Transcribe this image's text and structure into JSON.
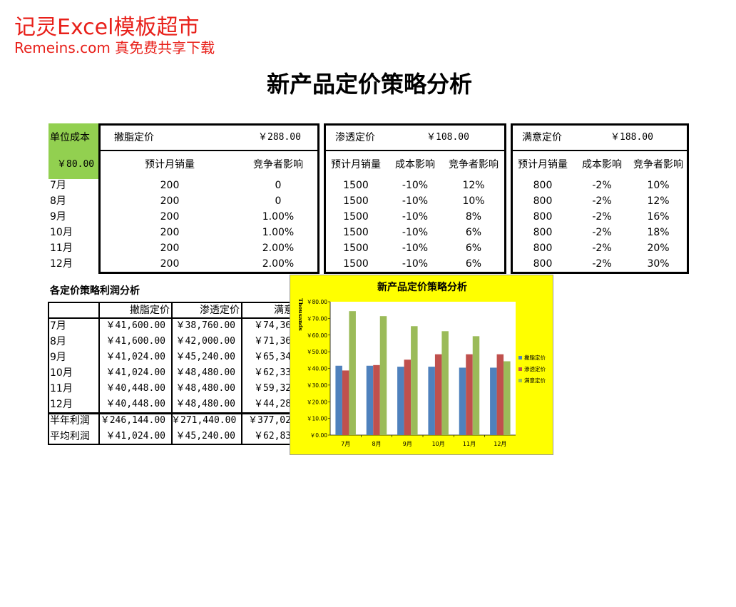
{
  "watermark": {
    "line1": "记灵Excel模板超市",
    "line2": "Remeins.com 真免费共享下载"
  },
  "title": "新产品定价策略分析",
  "unit_cost": {
    "label": "单位成本",
    "value": "￥80.00"
  },
  "skimming": {
    "label": "撇脂定价",
    "price": "￥288.00",
    "col1": "预计月销量",
    "col2": "竞争者影响",
    "rows": [
      {
        "sales": "200",
        "comp": "0"
      },
      {
        "sales": "200",
        "comp": "0"
      },
      {
        "sales": "200",
        "comp": "1.00%"
      },
      {
        "sales": "200",
        "comp": "1.00%"
      },
      {
        "sales": "200",
        "comp": "2.00%"
      },
      {
        "sales": "200",
        "comp": "2.00%"
      }
    ]
  },
  "penetration": {
    "label": "渗透定价",
    "price": "￥108.00",
    "col1": "预计月销量",
    "col2": "成本影响",
    "col3": "竞争者影响",
    "rows": [
      {
        "sales": "1500",
        "cost": "-10%",
        "comp": "12%"
      },
      {
        "sales": "1500",
        "cost": "-10%",
        "comp": "10%"
      },
      {
        "sales": "1500",
        "cost": "-10%",
        "comp": "8%"
      },
      {
        "sales": "1500",
        "cost": "-10%",
        "comp": "6%"
      },
      {
        "sales": "1500",
        "cost": "-10%",
        "comp": "6%"
      },
      {
        "sales": "1500",
        "cost": "-10%",
        "comp": "6%"
      }
    ]
  },
  "satisfaction": {
    "label": "满意定价",
    "price": "￥188.00",
    "col1": "预计月销量",
    "col2": "成本影响",
    "col3": "竞争者影响",
    "rows": [
      {
        "sales": "800",
        "cost": "-2%",
        "comp": "10%"
      },
      {
        "sales": "800",
        "cost": "-2%",
        "comp": "12%"
      },
      {
        "sales": "800",
        "cost": "-2%",
        "comp": "16%"
      },
      {
        "sales": "800",
        "cost": "-2%",
        "comp": "18%"
      },
      {
        "sales": "800",
        "cost": "-2%",
        "comp": "20%"
      },
      {
        "sales": "800",
        "cost": "-2%",
        "comp": "30%"
      }
    ]
  },
  "months": [
    "7月",
    "8月",
    "9月",
    "10月",
    "11月",
    "12月"
  ],
  "profit": {
    "title": "各定价策略利润分析",
    "headers": [
      "撇脂定价",
      "渗透定价",
      "满意定价"
    ],
    "rows": [
      {
        "a": "￥41,600.00",
        "b": "￥38,760.00",
        "c": "￥74,36"
      },
      {
        "a": "￥41,600.00",
        "b": "￥42,000.00",
        "c": "￥71,36"
      },
      {
        "a": "￥41,024.00",
        "b": "￥45,240.00",
        "c": "￥65,34"
      },
      {
        "a": "￥41,024.00",
        "b": "￥48,480.00",
        "c": "￥62,33"
      },
      {
        "a": "￥40,448.00",
        "b": "￥48,480.00",
        "c": "￥59,32"
      },
      {
        "a": "￥40,448.00",
        "b": "￥48,480.00",
        "c": "￥44,28"
      }
    ],
    "half_label": "半年利润",
    "half": {
      "a": "￥246,144.00",
      "b": "￥271,440.00",
      "c": "￥377,02"
    },
    "avg_label": "平均利润",
    "avg": {
      "a": "￥41,024.00",
      "b": "￥45,240.00",
      "c": "￥62,83"
    }
  },
  "chart_data": {
    "type": "bar",
    "title": "新产品定价策略分析",
    "ylabel": "Thousands",
    "categories": [
      "7月",
      "8月",
      "9月",
      "10月",
      "11月",
      "12月"
    ],
    "yticks": [
      "￥0.00",
      "￥10.00",
      "￥20.00",
      "￥30.00",
      "￥40.00",
      "￥50.00",
      "￥60.00",
      "￥70.00",
      "￥80.00"
    ],
    "ylim": [
      0,
      80
    ],
    "series": [
      {
        "name": "撇脂定价",
        "color": "#4f81bd",
        "values": [
          41.6,
          41.6,
          41.024,
          41.024,
          40.448,
          40.448
        ]
      },
      {
        "name": "渗透定价",
        "color": "#c0504d",
        "values": [
          38.76,
          42.0,
          45.24,
          48.48,
          48.48,
          48.48
        ]
      },
      {
        "name": "满意定价",
        "color": "#9bbb59",
        "values": [
          74.36,
          71.36,
          65.34,
          62.33,
          59.32,
          44.28
        ]
      }
    ],
    "legend": "right",
    "background": "#ffff00"
  }
}
